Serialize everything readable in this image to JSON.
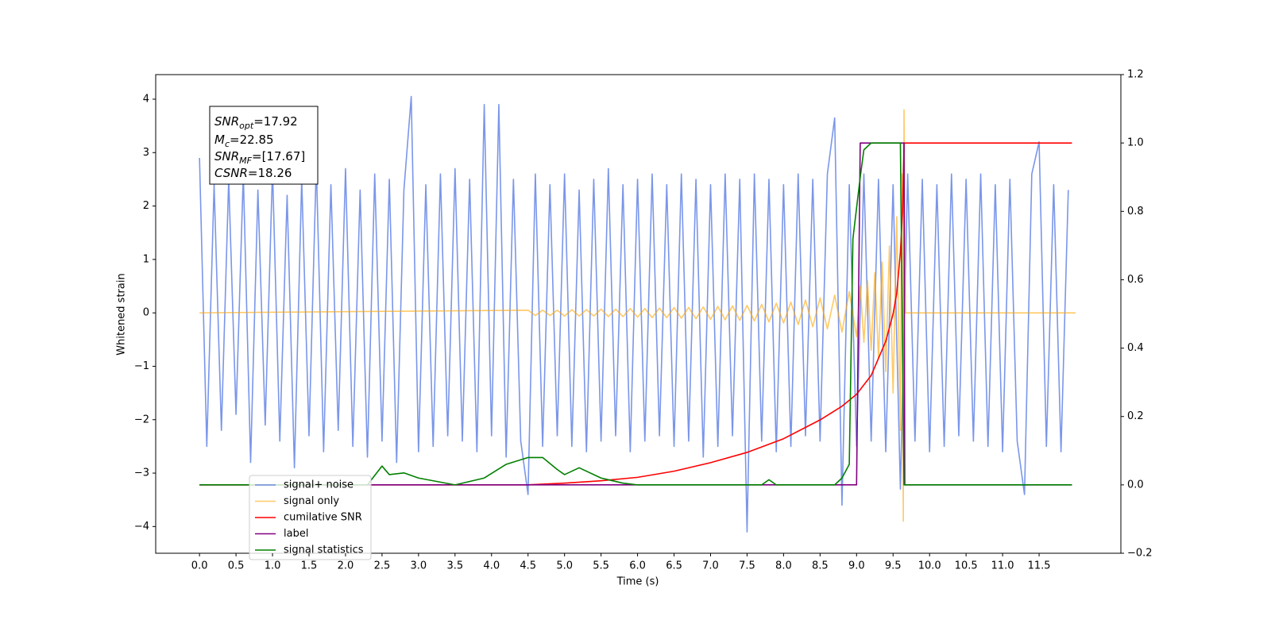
{
  "chart_data": {
    "type": "line",
    "xlabel": "Time (s)",
    "ylabel": "Whitened strain",
    "xlim": [
      -0.6,
      12.62
    ],
    "ylim": [
      -4.5,
      4.46
    ],
    "y2lim": [
      -0.2,
      1.2
    ],
    "xticks": [
      {
        "value": 0,
        "label": "0.0"
      },
      0.5,
      {
        "value": 1,
        "label": "1.0"
      },
      1.5,
      {
        "value": 2,
        "label": "2.0"
      },
      2.5,
      {
        "value": 3,
        "label": "3.0"
      },
      3.5,
      {
        "value": 4,
        "label": "4.0"
      },
      4.5,
      {
        "value": 5,
        "label": "5.0"
      },
      5.5,
      {
        "value": 6,
        "label": "6.0"
      },
      6.5,
      {
        "value": 7,
        "label": "7.0"
      },
      7.5,
      {
        "value": 8,
        "label": "8.0"
      },
      8.5,
      {
        "value": 9,
        "label": "9.0"
      },
      9.5,
      {
        "value": 10,
        "label": "10.0"
      },
      10.5,
      {
        "value": 11,
        "label": "11.0"
      },
      11.5
    ],
    "yticks": [
      {
        "value": -4,
        "label": "−4"
      },
      {
        "value": -3,
        "label": "−3"
      },
      {
        "value": -2,
        "label": "−2"
      },
      {
        "value": -1,
        "label": "−1"
      },
      0,
      1,
      2,
      3,
      4
    ],
    "y2ticks": [
      {
        "value": -0.2,
        "label": "−0.2"
      },
      {
        "value": 0,
        "label": "0.0"
      },
      0.2,
      0.4,
      0.6,
      0.8,
      {
        "value": 1,
        "label": "1.0"
      },
      1.2
    ],
    "legend": "lower left",
    "annotations": [
      {
        "symbol": "SNR",
        "subscript": "opt",
        "text": "=17.92"
      },
      {
        "symbol": "M",
        "subscript": "c",
        "text": "=22.85"
      },
      {
        "symbol": "SNR",
        "subscript": "MF",
        "text": "=[17.67]"
      },
      {
        "symbol": "CSNR",
        "text": "=18.26"
      }
    ],
    "series": [
      {
        "name": "signal+ noise",
        "color": "#4169e1",
        "alpha": 0.7,
        "x": [
          0,
          0.1,
          0.2,
          0.3,
          0.4,
          0.5,
          0.6,
          0.7,
          0.8,
          0.9,
          1,
          1.1,
          1.2,
          1.3,
          1.4,
          1.5,
          1.6,
          1.7,
          1.8,
          1.9,
          2,
          2.1,
          2.2,
          2.3,
          2.4,
          2.5,
          2.6,
          2.7,
          2.8,
          2.9,
          3,
          3.1,
          3.2,
          3.3,
          3.4,
          3.5,
          3.6,
          3.7,
          3.8,
          3.9,
          4,
          4.1,
          4.2,
          4.3,
          4.4,
          4.5,
          4.6,
          4.7,
          4.8,
          4.9,
          5,
          5.1,
          5.2,
          5.3,
          5.4,
          5.5,
          5.6,
          5.7,
          5.8,
          5.9,
          6,
          6.1,
          6.2,
          6.3,
          6.4,
          6.5,
          6.6,
          6.7,
          6.8,
          6.9,
          7,
          7.1,
          7.2,
          7.3,
          7.4,
          7.5,
          7.6,
          7.7,
          7.8,
          7.9,
          8,
          8.1,
          8.2,
          8.3,
          8.4,
          8.5,
          8.6,
          8.7,
          8.8,
          8.9,
          9,
          9.1,
          9.2,
          9.3,
          9.4,
          9.5,
          9.6,
          9.7,
          9.8,
          9.9,
          10,
          10.1,
          10.2,
          10.3,
          10.4,
          10.5,
          10.6,
          10.7,
          10.8,
          10.9,
          11,
          11.1,
          11.2,
          11.3,
          11.4,
          11.5,
          11.6,
          11.7,
          11.8,
          11.9
        ],
        "values": [
          2.9,
          -2.5,
          2.4,
          -2.2,
          2.5,
          -1.9,
          2.6,
          -2.8,
          2.3,
          -2.1,
          2.7,
          -2.4,
          2.2,
          -2.9,
          2.5,
          -2.3,
          2.8,
          -2.6,
          2.4,
          -2.2,
          2.7,
          -2.5,
          2.3,
          -2.7,
          2.6,
          -2.4,
          2.5,
          -2.8,
          2.3,
          4.05,
          -2.6,
          2.4,
          -2.5,
          2.6,
          -2.3,
          2.7,
          -2.4,
          2.5,
          -2.6,
          3.9,
          -2.3,
          3.9,
          -2.7,
          2.5,
          -2.4,
          -3.4,
          2.6,
          -2.5,
          2.4,
          -2.3,
          2.6,
          -2.5,
          2.3,
          -2.6,
          2.5,
          -2.4,
          2.7,
          -2.3,
          2.4,
          -2.6,
          2.5,
          -2.4,
          2.6,
          -2.3,
          2.4,
          -2.5,
          2.6,
          -2.4,
          2.5,
          -2.7,
          2.4,
          -2.5,
          2.6,
          -2.3,
          2.5,
          -4.1,
          2.6,
          -2.4,
          2.5,
          -2.6,
          2.4,
          -2.5,
          2.6,
          -2.3,
          2.5,
          -2.4,
          2.6,
          3.65,
          -3.6,
          2.4,
          -2.5,
          2.6,
          -2.4,
          2.5,
          -2.6,
          2.4,
          -3.3,
          2.6,
          -2.4,
          2.5,
          -2.6,
          2.4,
          -2.5,
          2.6,
          -2.3,
          2.5,
          -2.4,
          2.6,
          -2.5,
          2.4,
          -2.6,
          2.5,
          -2.4,
          -3.4,
          2.6,
          3.2,
          -2.5,
          2.4,
          -2.6,
          2.3
        ]
      },
      {
        "name": "signal only",
        "color": "#ffa500",
        "alpha": 0.6,
        "x": [
          0,
          4.5,
          4.6,
          4.7,
          4.8,
          4.9,
          5,
          5.1,
          5.2,
          5.3,
          5.4,
          5.5,
          5.6,
          5.7,
          5.8,
          5.9,
          6,
          6.1,
          6.2,
          6.3,
          6.4,
          6.5,
          6.6,
          6.7,
          6.8,
          6.9,
          7,
          7.1,
          7.2,
          7.3,
          7.4,
          7.5,
          7.6,
          7.7,
          7.8,
          7.9,
          8,
          8.1,
          8.2,
          8.3,
          8.4,
          8.5,
          8.6,
          8.7,
          8.8,
          8.9,
          9,
          9.05,
          9.1,
          9.15,
          9.2,
          9.25,
          9.3,
          9.35,
          9.4,
          9.45,
          9.5,
          9.55,
          9.6,
          9.62,
          9.64,
          9.65,
          9.67,
          12
        ],
        "values": [
          0,
          0.05,
          -0.05,
          0.05,
          -0.05,
          0.05,
          -0.06,
          0.06,
          -0.06,
          0.06,
          -0.06,
          0.07,
          -0.07,
          0.07,
          -0.07,
          0.08,
          -0.08,
          0.08,
          -0.09,
          0.09,
          -0.09,
          0.1,
          -0.1,
          0.1,
          -0.11,
          0.11,
          -0.12,
          0.12,
          -0.13,
          0.13,
          -0.14,
          0.14,
          -0.15,
          0.16,
          -0.17,
          0.18,
          -0.19,
          0.2,
          -0.22,
          0.24,
          -0.26,
          0.28,
          -0.3,
          0.33,
          -0.36,
          0.4,
          -0.45,
          0.5,
          -0.55,
          0.6,
          -0.7,
          0.75,
          -0.85,
          0.95,
          -1.1,
          1.25,
          -1.5,
          1.8,
          -2.2,
          2.6,
          -3.9,
          3.8,
          0,
          0
        ]
      },
      {
        "name": "cumilative SNR",
        "color": "#ff0000",
        "axis": "y2",
        "x": [
          0,
          4.5,
          5,
          5.5,
          6,
          6.5,
          7,
          7.5,
          8,
          8.5,
          8.8,
          9,
          9.2,
          9.4,
          9.5,
          9.55,
          9.6,
          9.63,
          9.65,
          11.95
        ],
        "values": [
          0,
          0,
          0.005,
          0.012,
          0.022,
          0.04,
          0.065,
          0.095,
          0.135,
          0.19,
          0.23,
          0.265,
          0.32,
          0.42,
          0.5,
          0.56,
          0.68,
          0.8,
          1,
          1
        ]
      },
      {
        "name": "label",
        "color": "#800080",
        "axis": "y2",
        "x": [
          0,
          9,
          9.05,
          9.65,
          9.66,
          11.95
        ],
        "values": [
          0,
          0,
          1,
          1,
          0,
          0
        ]
      },
      {
        "name": "signal statistics",
        "color": "#008000",
        "axis": "y2",
        "x": [
          0,
          2.3,
          2.5,
          2.6,
          2.8,
          3,
          3.5,
          3.9,
          4.2,
          4.5,
          4.7,
          4.9,
          5,
          5.2,
          5.5,
          5.8,
          6,
          7.7,
          7.8,
          7.9,
          8.7,
          8.8,
          8.9,
          8.95,
          9.05,
          9.1,
          9.2,
          9.6,
          9.65,
          11.95
        ],
        "values": [
          0,
          0,
          0.055,
          0.03,
          0.035,
          0.02,
          0,
          0.02,
          0.06,
          0.08,
          0.08,
          0.045,
          0.03,
          0.05,
          0.02,
          0.005,
          0,
          0,
          0.015,
          0,
          0,
          0.02,
          0.06,
          0.72,
          0.9,
          0.98,
          1,
          1,
          0,
          0
        ]
      }
    ]
  }
}
